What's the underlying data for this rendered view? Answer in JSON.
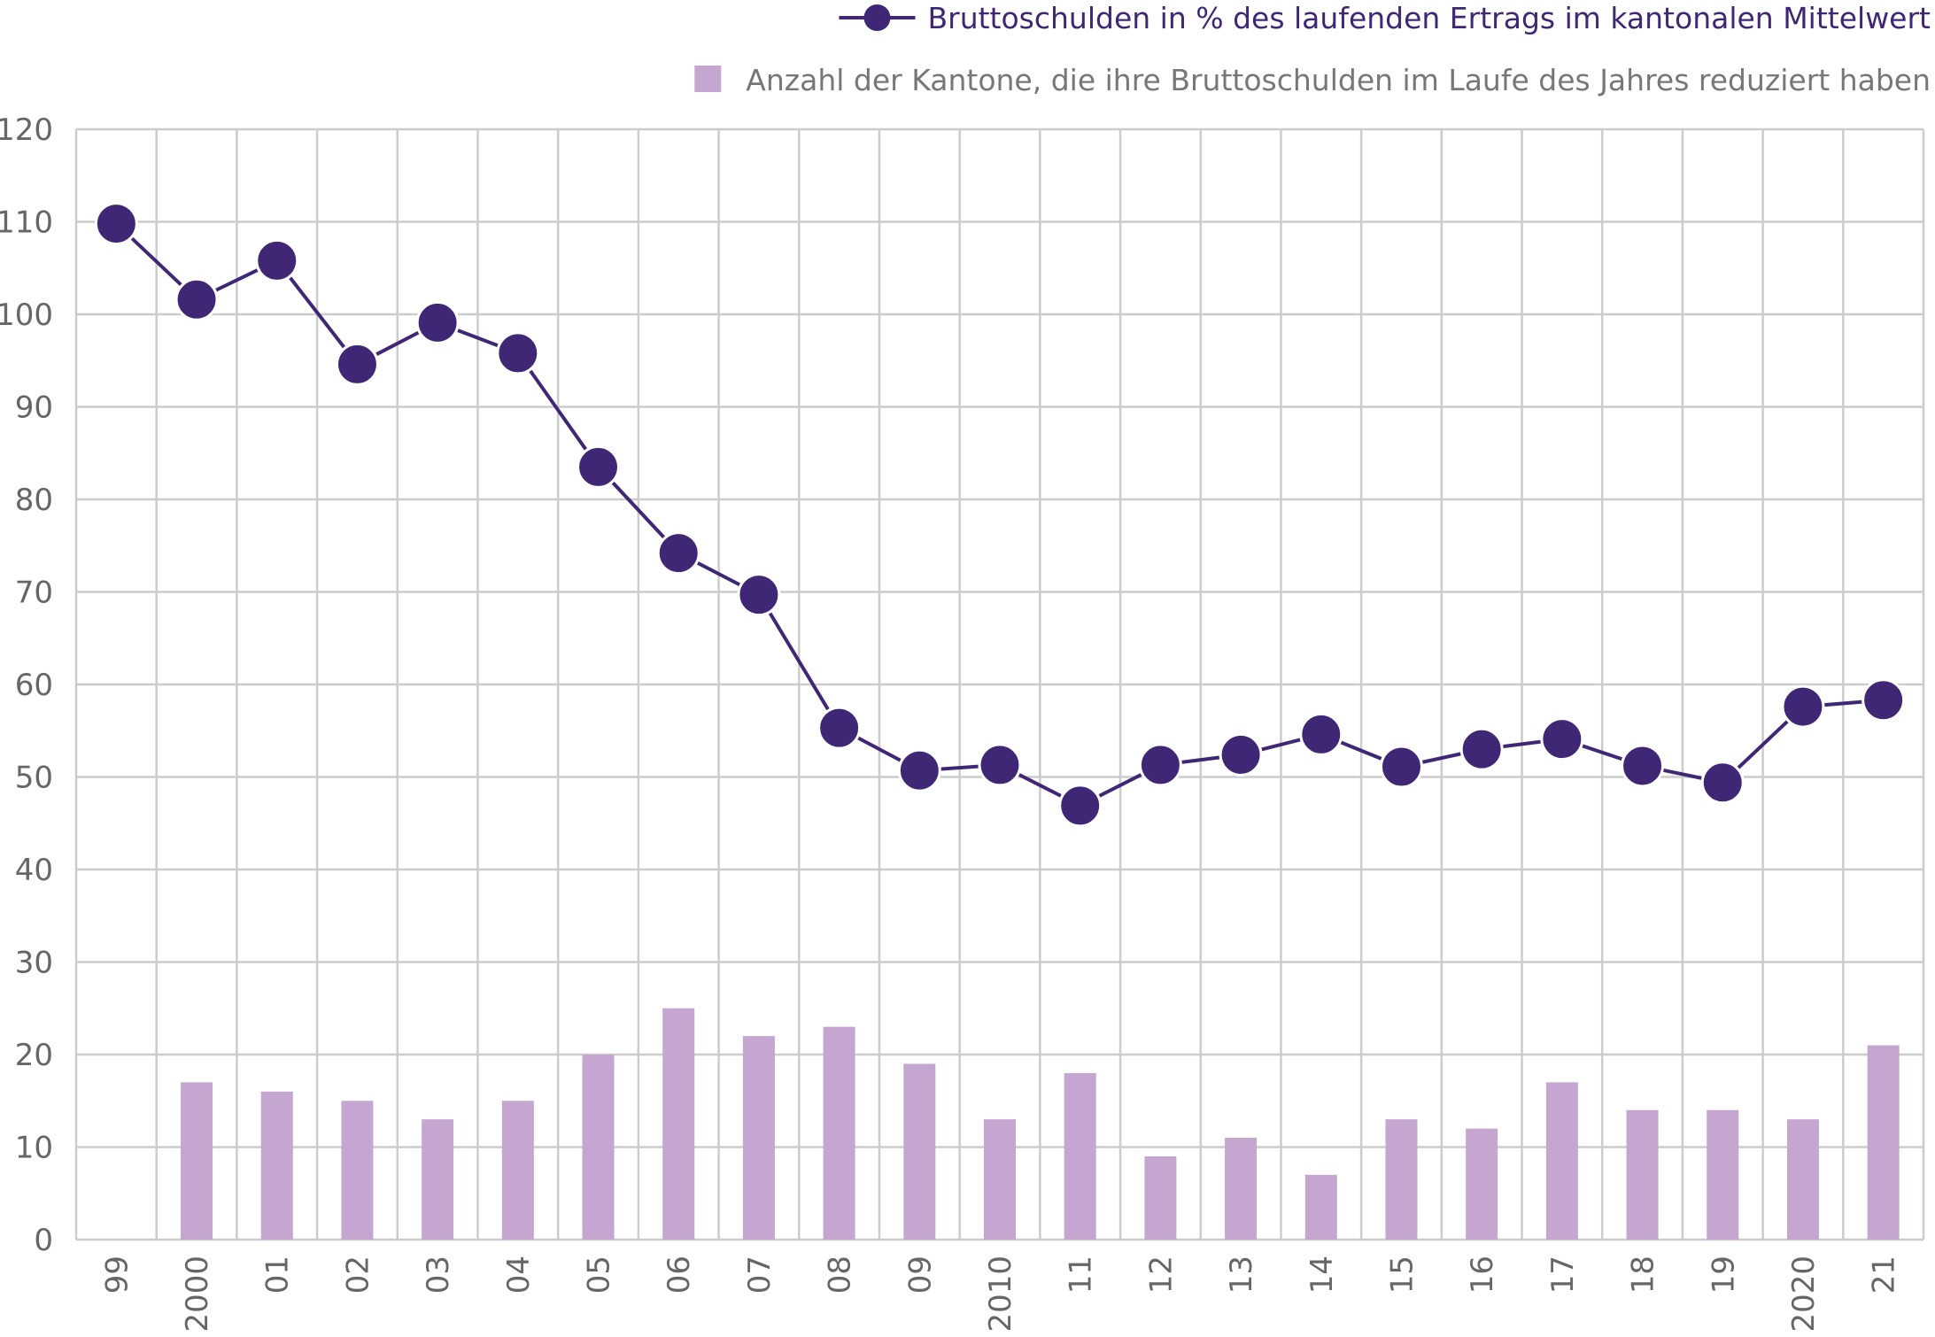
{
  "chart_data": {
    "type": "bar+line",
    "categories": [
      "99",
      "2000",
      "01",
      "02",
      "03",
      "04",
      "05",
      "06",
      "07",
      "08",
      "09",
      "2010",
      "11",
      "12",
      "13",
      "14",
      "15",
      "16",
      "17",
      "18",
      "19",
      "2020",
      "21"
    ],
    "ylim": [
      0,
      120
    ],
    "yticks": [
      0,
      10,
      20,
      30,
      40,
      50,
      60,
      70,
      80,
      90,
      100,
      110,
      120
    ],
    "grid": true,
    "legend_position": "top-right",
    "colors": {
      "line": "#3f2776",
      "bar": "#c4a6d0",
      "grid": "#cccccc",
      "tick_text": "#666666",
      "legend_bar_text": "#777777"
    },
    "series": [
      {
        "name": "Bruttoschulden in % des laufenden Ertrags im kantonalen Mittelwert",
        "type": "line",
        "values": [
          109.8,
          101.6,
          105.8,
          94.6,
          99.1,
          95.8,
          83.5,
          74.2,
          69.7,
          55.3,
          50.7,
          51.3,
          46.9,
          51.3,
          52.4,
          54.6,
          51.1,
          53.0,
          54.1,
          51.2,
          49.4,
          57.6,
          58.3
        ]
      },
      {
        "name": "Anzahl der Kantone, die ihre Bruttoschulden im Laufe des Jahres reduziert haben",
        "type": "bar",
        "values": [
          null,
          17,
          16,
          15,
          13,
          15,
          20,
          25,
          22,
          23,
          19,
          13,
          18,
          9,
          11,
          7,
          13,
          12,
          17,
          14,
          14,
          13,
          21
        ]
      }
    ]
  }
}
